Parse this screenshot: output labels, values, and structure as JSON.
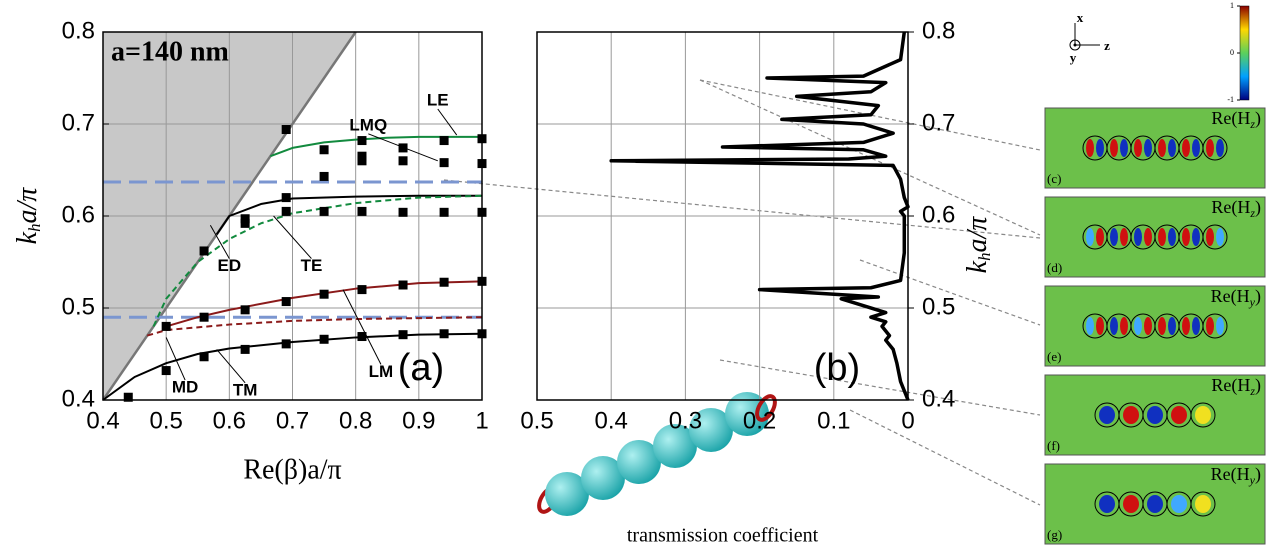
{
  "chart_data": [
    {
      "type": "line",
      "panel_label": "(a)",
      "annotation": "a=140 nm",
      "x_label": "Re(β)a/π",
      "y_label": {
        "main": "k",
        "sub": "h",
        "rest": "a/π"
      },
      "xlim": [
        0.4,
        1
      ],
      "ylim": [
        0.4,
        0.8
      ],
      "xticks": [
        0.4,
        0.5,
        0.6,
        0.7,
        0.8,
        0.9,
        1
      ],
      "yticks": [
        0.4,
        0.5,
        0.6,
        0.7,
        0.8
      ],
      "grid": true,
      "light_cone": true,
      "hlines": [
        0.637,
        0.49
      ],
      "hline_color": "#7b96d0",
      "series": [
        {
          "color": "#128a3e",
          "dashed": false,
          "x": [
            0.665,
            0.7,
            0.75,
            0.8,
            0.85,
            0.9,
            1
          ],
          "values": [
            0.665,
            0.674,
            0.68,
            0.683,
            0.685,
            0.686,
            0.686
          ]
        },
        {
          "color": "#000000",
          "dashed": false,
          "x": [
            0.58,
            0.6,
            0.65,
            0.7,
            0.8,
            0.9,
            1
          ],
          "values": [
            0.58,
            0.6,
            0.613,
            0.619,
            0.621,
            0.622,
            0.622
          ]
        },
        {
          "color": "#128a3e",
          "dashed": true,
          "x": [
            0.48,
            0.5,
            0.55,
            0.6,
            0.65,
            0.7,
            0.8,
            0.9,
            1
          ],
          "values": [
            0.48,
            0.51,
            0.55,
            0.575,
            0.592,
            0.603,
            0.614,
            0.62,
            0.622
          ]
        },
        {
          "color": "#8b1a1a",
          "dashed": false,
          "x": [
            0.5,
            0.55,
            0.6,
            0.7,
            0.8,
            0.9,
            1
          ],
          "values": [
            0.48,
            0.49,
            0.498,
            0.511,
            0.521,
            0.527,
            0.529
          ]
        },
        {
          "color": "#8b1a1a",
          "dashed": true,
          "x": [
            0.47,
            0.5,
            0.6,
            0.7,
            0.8,
            0.9,
            1
          ],
          "values": [
            0.47,
            0.476,
            0.482,
            0.486,
            0.488,
            0.489,
            0.49
          ]
        },
        {
          "color": "#000000",
          "dashed": false,
          "x": [
            0.4,
            0.45,
            0.5,
            0.55,
            0.6,
            0.7,
            0.8,
            0.9,
            1
          ],
          "values": [
            0.4,
            0.425,
            0.44,
            0.45,
            0.456,
            0.463,
            0.468,
            0.471,
            0.472
          ]
        }
      ],
      "points": {
        "color": "#000000",
        "x": [
          0.44,
          0.5,
          0.5,
          0.56,
          0.56,
          0.56,
          0.625,
          0.625,
          0.625,
          0.625,
          0.69,
          0.69,
          0.69,
          0.69,
          0.69,
          0.75,
          0.75,
          0.75,
          0.75,
          0.75,
          0.81,
          0.81,
          0.81,
          0.81,
          0.81,
          0.81,
          0.875,
          0.875,
          0.875,
          0.875,
          0.875,
          0.94,
          0.94,
          0.94,
          0.94,
          0.94,
          1,
          1,
          1,
          1,
          1
        ],
        "values": [
          0.403,
          0.432,
          0.48,
          0.447,
          0.49,
          0.562,
          0.455,
          0.498,
          0.592,
          0.597,
          0.461,
          0.507,
          0.605,
          0.62,
          0.694,
          0.466,
          0.515,
          0.605,
          0.643,
          0.672,
          0.469,
          0.52,
          0.605,
          0.66,
          0.665,
          0.682,
          0.471,
          0.525,
          0.604,
          0.66,
          0.674,
          0.472,
          0.528,
          0.604,
          0.658,
          0.682,
          0.472,
          0.529,
          0.604,
          0.657,
          0.684
        ]
      },
      "curve_labels": [
        "LE",
        "LMQ",
        "ED",
        "TE",
        "LM",
        "MD",
        "TM"
      ]
    },
    {
      "type": "line",
      "panel_label": "(b)",
      "x_label": "transmission coefficient",
      "y_label": {
        "main": "k",
        "sub": "h",
        "rest": "a/π"
      },
      "xlim": [
        0.5,
        0
      ],
      "ylim": [
        0.4,
        0.8
      ],
      "xticks": [
        0.5,
        0.4,
        0.3,
        0.2,
        0.1,
        0
      ],
      "yticks": [
        0.4,
        0.5,
        0.6,
        0.7,
        0.8
      ],
      "grid": true,
      "series": [
        {
          "color": "#000000",
          "x": [
            0,
            0.01,
            0.015,
            0.02,
            0.03,
            0.025,
            0.035,
            0.03,
            0.05,
            0.03,
            0.09,
            0.04,
            0.2,
            0.05,
            0.01,
            0.005,
            0.005,
            0.01,
            0,
            0.005,
            0.01,
            0.02,
            0.4,
            0.08,
            0.03,
            0.06,
            0.25,
            0.06,
            0.02,
            0.06,
            0.17,
            0.05,
            0.04,
            0.15,
            0.05,
            0.03,
            0.19,
            0.06,
            0.01,
            0.005
          ],
          "values": [
            0.4,
            0.42,
            0.44,
            0.455,
            0.465,
            0.47,
            0.48,
            0.485,
            0.49,
            0.495,
            0.51,
            0.512,
            0.52,
            0.522,
            0.53,
            0.56,
            0.6,
            0.605,
            0.61,
            0.62,
            0.64,
            0.655,
            0.66,
            0.662,
            0.665,
            0.672,
            0.675,
            0.68,
            0.69,
            0.7,
            0.705,
            0.71,
            0.72,
            0.73,
            0.735,
            0.745,
            0.75,
            0.752,
            0.77,
            0.8
          ]
        }
      ]
    }
  ],
  "axes_legend": [
    "x",
    "y",
    "z"
  ],
  "colorbar": {
    "ticks": [
      1,
      0,
      -1
    ],
    "lim": [
      -1,
      1
    ]
  },
  "field_maps": [
    {
      "label": "(c)",
      "quantity": {
        "prefix": "Re(H",
        "sub": "z",
        "suffix": ")"
      }
    },
    {
      "label": "(d)",
      "quantity": {
        "prefix": "Re(H",
        "sub": "z",
        "suffix": ")"
      }
    },
    {
      "label": "(e)",
      "quantity": {
        "prefix": "Re(H",
        "sub": "y",
        "suffix": ")"
      }
    },
    {
      "label": "(f)",
      "quantity": {
        "prefix": "Re(H",
        "sub": "z",
        "suffix": ")"
      }
    },
    {
      "label": "(g)",
      "quantity": {
        "prefix": "Re(H",
        "sub": "y",
        "suffix": ")"
      }
    }
  ]
}
